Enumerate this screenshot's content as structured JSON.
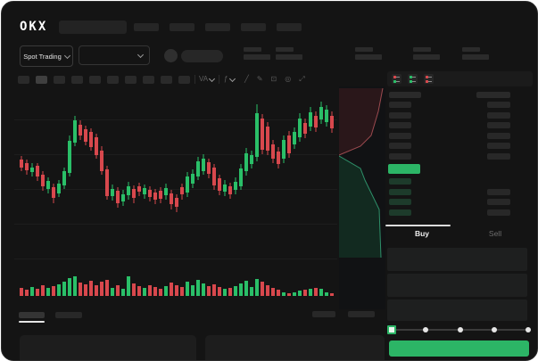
{
  "brand": {
    "name": "OKX"
  },
  "nav": {
    "item_count": 5
  },
  "toolbar_row": {
    "market_selector": {
      "label": "Spot Trading"
    },
    "stat_group_count": 5
  },
  "chart_toolbar": {
    "timeframe_count": 10,
    "active_timeframe_index": 1,
    "indicator_label": "VA",
    "fx_label": "ƒ",
    "icon_names": [
      "wave-line-icon",
      "draw-icon",
      "screenshot-icon",
      "settings-icon",
      "fullscreen-icon"
    ],
    "icon_glyphs": [
      "╱",
      "✎",
      "⊡",
      "◎",
      "⤢"
    ]
  },
  "orderbook": {
    "view_modes": [
      "split-view",
      "bids-view",
      "asks-view"
    ],
    "ask_row_count": 6,
    "bid_row_count": 4,
    "bid_rows_with_amount": [
      1,
      2,
      3
    ]
  },
  "trade_panel": {
    "tabs": {
      "buy": "Buy",
      "sell": "Sell",
      "active": "Buy"
    },
    "field_count": 3,
    "slider": {
      "stop_count": 5,
      "active_stop": 0
    }
  },
  "colors": {
    "up": "#2abf68",
    "down": "#d8484d",
    "accent": "#2cb566",
    "grid": "#1d1d1d",
    "depth_ask_fill": "#2a171a",
    "depth_ask_line": "#9c4a4f",
    "depth_bid_fill": "#122a20",
    "depth_bid_line": "#2e8f69"
  },
  "chart_data": {
    "type": "candlestick+volume",
    "title": "",
    "x_axis": "time (tick labels not visible in screenshot)",
    "y_axis": "price (tick labels not visible in screenshot)",
    "units": "relative price units estimated from pixel positions; no axis labels are rendered",
    "grid": true,
    "candles_ohlc": [
      [
        123,
        127,
        110,
        114
      ],
      [
        119,
        123,
        106,
        111
      ],
      [
        109,
        119,
        104,
        114
      ],
      [
        116,
        119,
        99,
        104
      ],
      [
        106,
        110,
        88,
        93
      ],
      [
        90,
        103,
        85,
        99
      ],
      [
        92,
        96,
        74,
        80
      ],
      [
        85,
        100,
        81,
        96
      ],
      [
        94,
        114,
        90,
        110
      ],
      [
        108,
        150,
        104,
        144
      ],
      [
        142,
        172,
        138,
        167
      ],
      [
        162,
        167,
        145,
        150
      ],
      [
        157,
        161,
        139,
        143
      ],
      [
        154,
        158,
        133,
        137
      ],
      [
        148,
        152,
        124,
        128
      ],
      [
        133,
        138,
        106,
        110
      ],
      [
        112,
        116,
        78,
        82
      ],
      [
        82,
        95,
        77,
        90
      ],
      [
        88,
        92,
        69,
        74
      ],
      [
        76,
        89,
        71,
        84
      ],
      [
        83,
        98,
        78,
        93
      ],
      [
        90,
        94,
        74,
        80
      ],
      [
        93,
        97,
        82,
        87
      ],
      [
        84,
        95,
        79,
        91
      ],
      [
        89,
        93,
        76,
        81
      ],
      [
        86,
        90,
        73,
        78
      ],
      [
        88,
        92,
        74,
        79
      ],
      [
        83,
        96,
        78,
        91
      ],
      [
        85,
        89,
        67,
        73
      ],
      [
        80,
        84,
        64,
        70
      ],
      [
        92,
        96,
        78,
        84
      ],
      [
        86,
        109,
        81,
        104
      ],
      [
        96,
        112,
        91,
        107
      ],
      [
        104,
        126,
        100,
        121
      ],
      [
        110,
        129,
        106,
        124
      ],
      [
        120,
        124,
        102,
        107
      ],
      [
        114,
        118,
        89,
        94
      ],
      [
        102,
        106,
        83,
        88
      ],
      [
        87,
        100,
        82,
        95
      ],
      [
        93,
        97,
        79,
        84
      ],
      [
        89,
        103,
        84,
        98
      ],
      [
        93,
        118,
        89,
        113
      ],
      [
        110,
        136,
        105,
        130
      ],
      [
        118,
        133,
        113,
        128
      ],
      [
        126,
        185,
        121,
        175
      ],
      [
        169,
        174,
        129,
        134
      ],
      [
        160,
        165,
        128,
        133
      ],
      [
        140,
        145,
        119,
        124
      ],
      [
        132,
        137,
        113,
        118
      ],
      [
        124,
        150,
        119,
        145
      ],
      [
        150,
        155,
        125,
        130
      ],
      [
        140,
        159,
        135,
        154
      ],
      [
        148,
        175,
        143,
        169
      ],
      [
        164,
        169,
        147,
        152
      ],
      [
        160,
        182,
        155,
        176
      ],
      [
        172,
        177,
        154,
        159
      ],
      [
        168,
        188,
        163,
        182
      ],
      [
        165,
        184,
        160,
        179
      ],
      [
        172,
        177,
        153,
        158
      ]
    ],
    "volumes": [
      9,
      7,
      10,
      8,
      12,
      9,
      11,
      13,
      16,
      20,
      22,
      15,
      13,
      17,
      12,
      16,
      18,
      9,
      12,
      8,
      22,
      14,
      11,
      9,
      12,
      10,
      8,
      11,
      15,
      12,
      10,
      16,
      12,
      18,
      14,
      11,
      13,
      10,
      8,
      9,
      11,
      14,
      17,
      10,
      19,
      16,
      12,
      9,
      7,
      4,
      3,
      4,
      6,
      7,
      8,
      9,
      8,
      4,
      3
    ]
  }
}
